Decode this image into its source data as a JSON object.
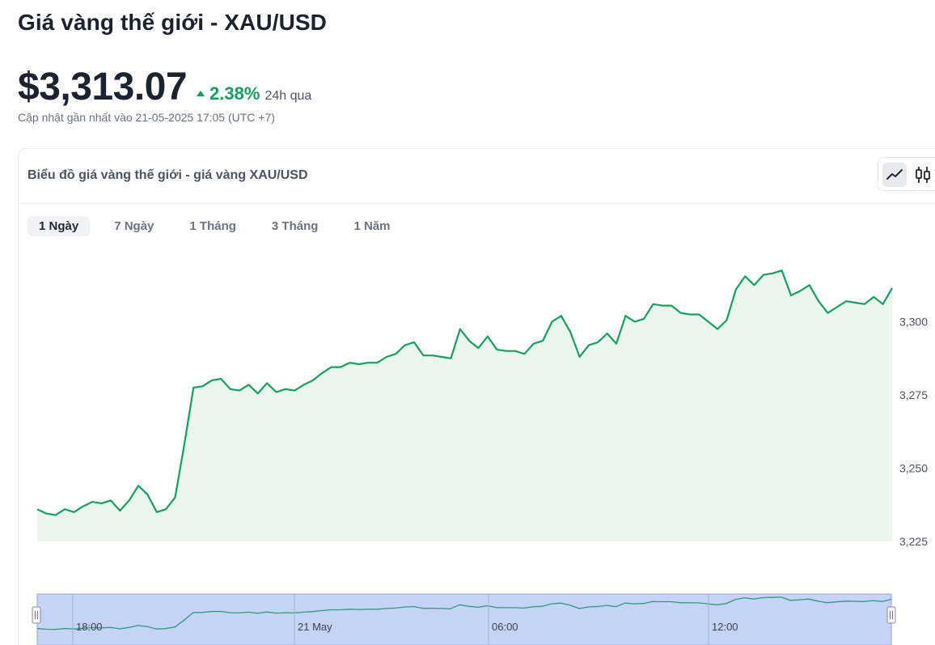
{
  "header": {
    "title": "Giá vàng thế giới - XAU/USD",
    "price": "$3,313.07",
    "change_pct": "2.38%",
    "change_period": "24h qua",
    "updated": "Cập nhật gần nhất vào 21-05-2025 17:05 (UTC +7)"
  },
  "card": {
    "title": "Biểu đồ giá vàng thế giới - giá vàng XAU/USD",
    "view_toggle": {
      "line_icon": "line-chart-icon",
      "candle_icon": "candlestick-icon",
      "active": "line"
    },
    "tabs": [
      "1 Ngày",
      "7 Ngày",
      "1 Tháng",
      "3 Tháng",
      "1 Năm"
    ],
    "active_tab": "1 Ngày"
  },
  "colors": {
    "line": "#17a05d",
    "area_fill": "#eaf6ee",
    "positive": "#12a05c",
    "navigator_fill": "#c7d2f7",
    "navigator_border": "#9aa6d8"
  },
  "chart_data": {
    "type": "area",
    "title": "",
    "ylim": [
      3225,
      3317
    ],
    "yticks": [
      3225,
      3250,
      3275,
      3300
    ],
    "ytick_labels": [
      "3,225",
      "3,250",
      "3,275",
      "3,300"
    ],
    "grid": false,
    "navigator_labels": [
      "18:00",
      "21 May",
      "06:00",
      "12:00"
    ],
    "values": [
      3236,
      3234.5,
      3234,
      3236,
      3235,
      3237,
      3238.5,
      3238,
      3239,
      3235.5,
      3239,
      3244,
      3241,
      3235,
      3236,
      3240,
      3258,
      3277.5,
      3278,
      3280,
      3280.5,
      3277,
      3276.5,
      3278.5,
      3275.5,
      3279,
      3276,
      3277,
      3276.5,
      3278.5,
      3280,
      3282.5,
      3284.5,
      3284.5,
      3286,
      3285.5,
      3286,
      3286,
      3288,
      3289,
      3292,
      3293,
      3288.5,
      3288.5,
      3288,
      3287.5,
      3297.5,
      3293.5,
      3291,
      3295,
      3290.5,
      3290,
      3290,
      3289,
      3292.5,
      3293.5,
      3300,
      3302,
      3296.5,
      3288,
      3292,
      3293,
      3296,
      3292.5,
      3302,
      3300,
      3301,
      3306,
      3305.5,
      3305.5,
      3303,
      3302.5,
      3302.5,
      3300,
      3297.5,
      3300.5,
      3311,
      3315.5,
      3312.5,
      3316,
      3316.5,
      3317.5,
      3309,
      3310.5,
      3312.5,
      3307,
      3303,
      3305,
      3307,
      3306.5,
      3306,
      3308.5,
      3306,
      3311.5
    ]
  }
}
